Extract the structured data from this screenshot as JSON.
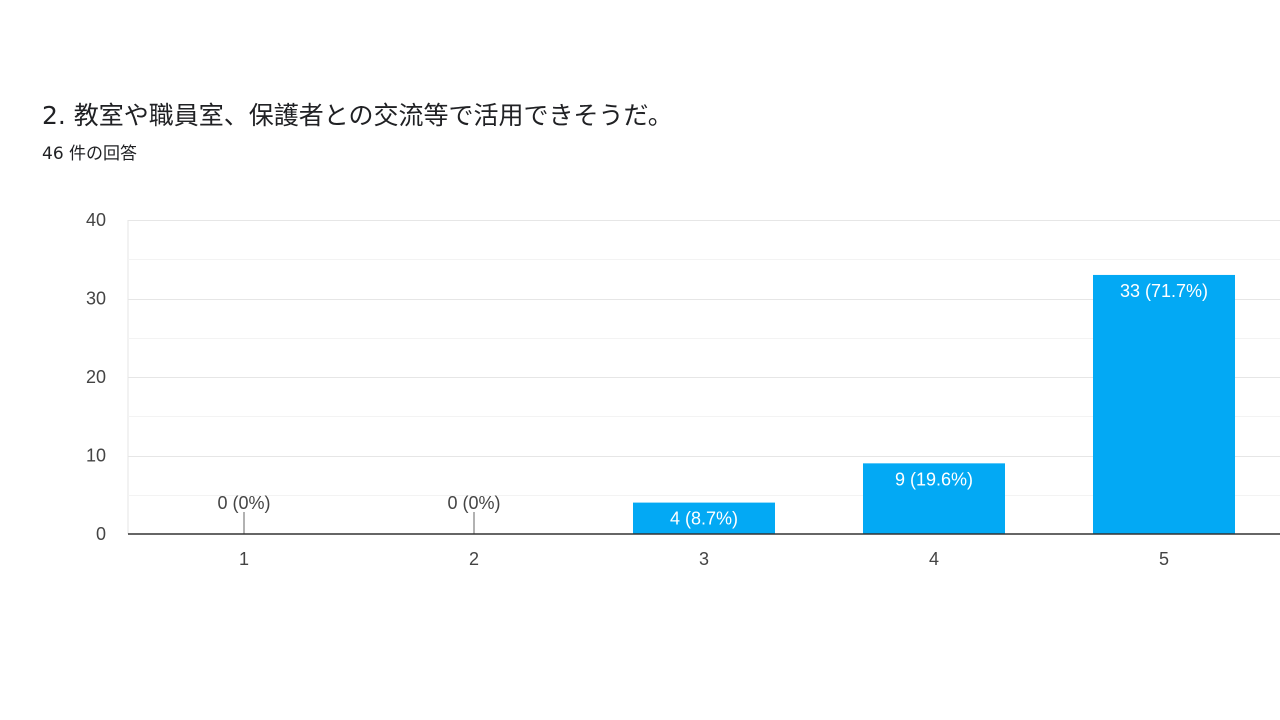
{
  "question": {
    "title": "2. 教室や職員室、保護者との交流等で活用できそうだ。",
    "response_count": "46 件の回答"
  },
  "colors": {
    "bar": "#03a9f4",
    "grid": "#e6e6e6",
    "minor_grid": "#f3f3f3",
    "axis": "#333333",
    "text": "#444444",
    "label_inside": "#ffffff",
    "label_outside": "#444444"
  },
  "chart_data": {
    "type": "bar",
    "categories": [
      "1",
      "2",
      "3",
      "4",
      "5"
    ],
    "values": [
      0,
      0,
      4,
      9,
      33
    ],
    "data_labels": [
      "0 (0%)",
      "0 (0%)",
      "4 (8.7%)",
      "9 (19.6%)",
      "33 (71.7%)"
    ],
    "y_ticks": [
      "0",
      "10",
      "20",
      "30",
      "40"
    ],
    "ylim": [
      0,
      40
    ],
    "grid": true,
    "legend": "none"
  }
}
